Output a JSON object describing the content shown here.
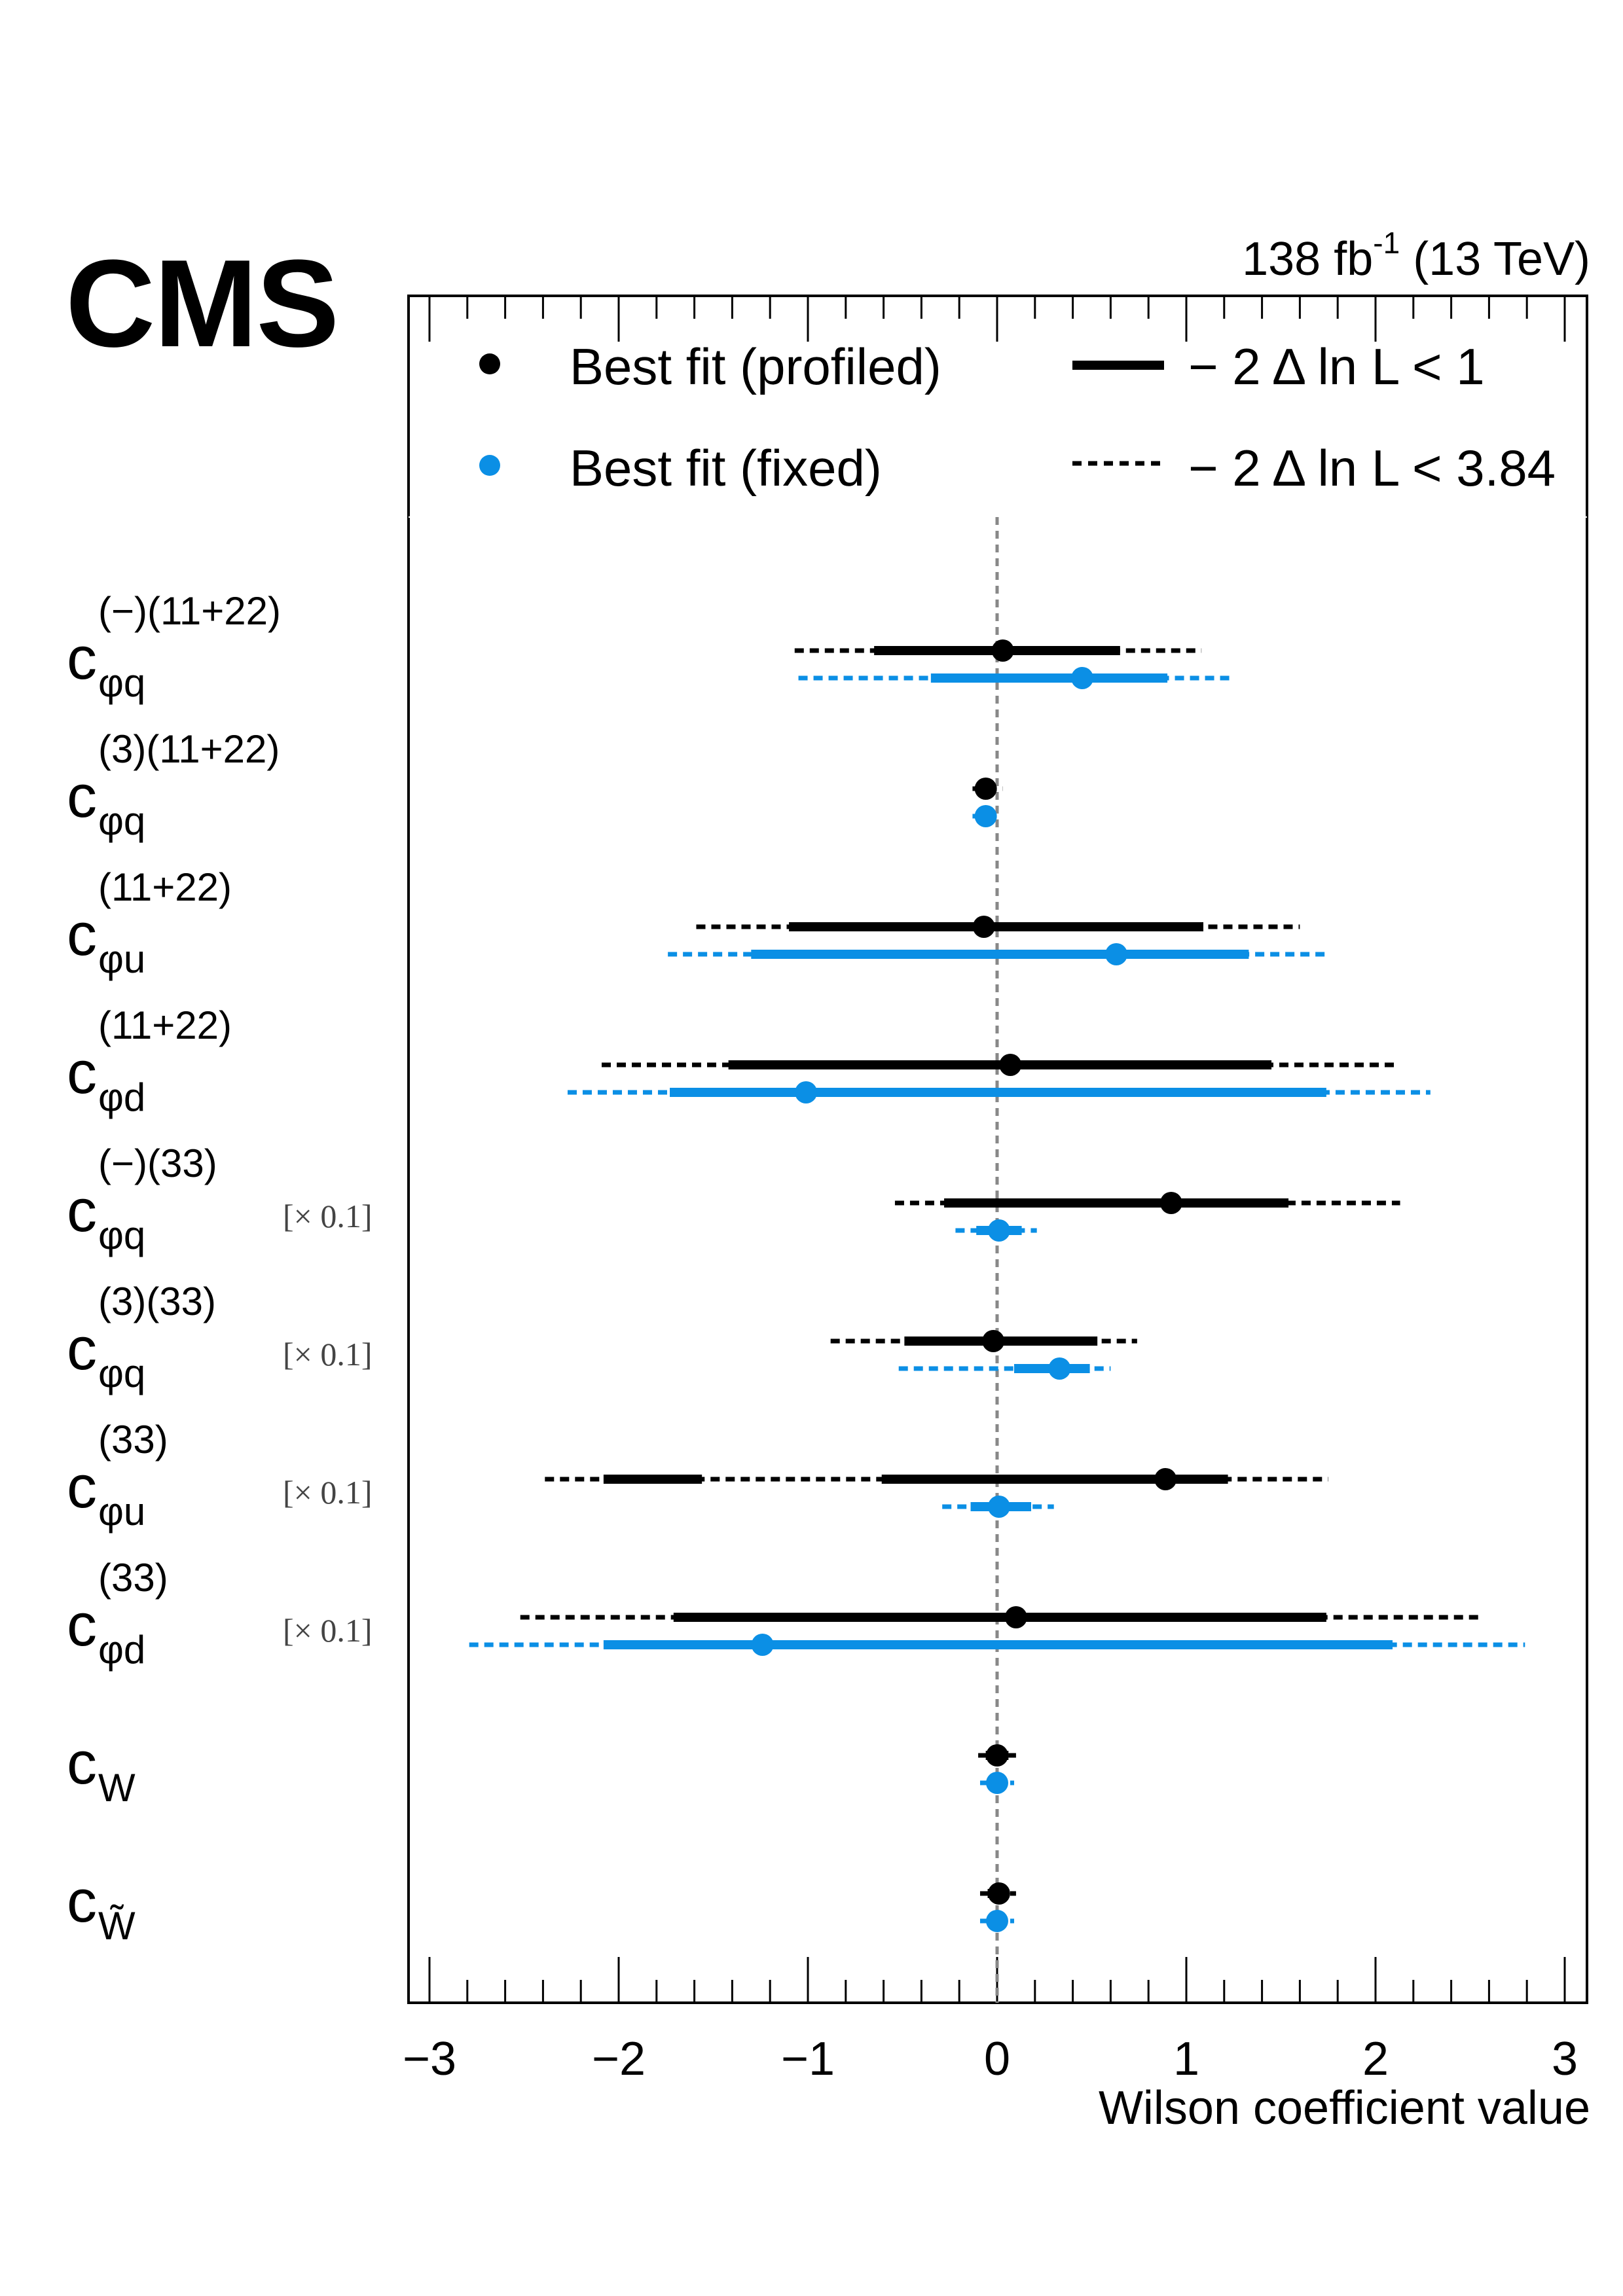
{
  "header": {
    "experiment": "CMS",
    "lumi": "138 fb",
    "lumi_exp": "-1",
    "energy": " (13 TeV)"
  },
  "legend": {
    "profiled": "Best fit (profiled)",
    "fixed": "Best fit (fixed)",
    "one_sigma": "− 2 Δ ln L < 1",
    "ninetyfive": "− 2 Δ ln L < 3.84"
  },
  "colors": {
    "profiled": "#000000",
    "fixed": "#0b8fe5",
    "zero_line": "#888888"
  },
  "chart_data": {
    "type": "scatter",
    "xlabel": "Wilson coefficient value",
    "xlim": [
      -3.1,
      3.15
    ],
    "xticks": [
      "−3",
      "−2",
      "−1",
      "0",
      "1",
      "2",
      "3"
    ],
    "xtick_values": [
      -3,
      -2,
      -1,
      0,
      1,
      2,
      3
    ],
    "grid": false,
    "legend_position": "top",
    "rows": [
      {
        "label_main": "c",
        "label_sub": "φq",
        "label_sup": "(−)(11+22)",
        "scale_note": "",
        "profiled": {
          "best": 0.03,
          "cl68": [
            [
              -0.65,
              0.65
            ]
          ],
          "cl95": [
            [
              -1.07,
              1.08
            ]
          ]
        },
        "fixed": {
          "best": 0.45,
          "cl68": [
            [
              -0.35,
              0.9
            ]
          ],
          "cl95": [
            [
              -1.05,
              1.24
            ]
          ]
        }
      },
      {
        "label_main": "c",
        "label_sub": "φq",
        "label_sup": "(3)(11+22)",
        "scale_note": "",
        "profiled": {
          "best": -0.06,
          "cl68": [
            [
              -0.1,
              -0.02
            ]
          ],
          "cl95": [
            [
              -0.13,
              0.03
            ]
          ]
        },
        "fixed": {
          "best": -0.06,
          "cl68": [
            [
              -0.08,
              -0.03
            ]
          ],
          "cl95": [
            [
              -0.13,
              0.01
            ]
          ]
        }
      },
      {
        "label_main": "c",
        "label_sub": "φu",
        "label_sup": "(11+22)",
        "scale_note": "",
        "profiled": {
          "best": -0.07,
          "cl68": [
            [
              -1.1,
              1.09
            ]
          ],
          "cl95": [
            [
              -1.59,
              1.6
            ]
          ]
        },
        "fixed": {
          "best": 0.63,
          "cl68": [
            [
              -1.3,
              1.33
            ]
          ],
          "cl95": [
            [
              -1.74,
              1.76
            ]
          ]
        }
      },
      {
        "label_main": "c",
        "label_sub": "φd",
        "label_sup": "(11+22)",
        "scale_note": "",
        "profiled": {
          "best": 0.07,
          "cl68": [
            [
              -1.42,
              1.45
            ]
          ],
          "cl95": [
            [
              -2.09,
              2.12
            ]
          ]
        },
        "fixed": {
          "best": -1.01,
          "cl68": [
            [
              -1.73,
              1.74
            ]
          ],
          "cl95": [
            [
              -2.27,
              2.29
            ]
          ]
        }
      },
      {
        "label_main": "c",
        "label_sub": "φq",
        "label_sup": "(−)(33)",
        "scale_note": "[× 0.1]",
        "profiled": {
          "best": 0.92,
          "cl68": [
            [
              -0.28,
              1.54
            ]
          ],
          "cl95": [
            [
              -0.54,
              2.13
            ]
          ]
        },
        "fixed": {
          "best": 0.01,
          "cl68": [
            [
              -0.11,
              0.13
            ]
          ],
          "cl95": [
            [
              -0.22,
              0.21
            ]
          ]
        }
      },
      {
        "label_main": "c",
        "label_sub": "φq",
        "label_sup": "(3)(33)",
        "scale_note": "[× 0.1]",
        "profiled": {
          "best": -0.02,
          "cl68": [
            [
              -0.49,
              0.53
            ]
          ],
          "cl95": [
            [
              -0.88,
              0.74
            ]
          ]
        },
        "fixed": {
          "best": 0.33,
          "cl68": [
            [
              0.09,
              0.49
            ]
          ],
          "cl95": [
            [
              -0.52,
              0.6
            ]
          ]
        }
      },
      {
        "label_main": "c",
        "label_sub": "φu",
        "label_sup": "(33)",
        "scale_note": "[× 0.1]",
        "profiled": {
          "best": 0.89,
          "cl68": [
            [
              -2.08,
              -1.56
            ],
            [
              -0.61,
              1.22
            ]
          ],
          "cl95": [
            [
              -2.39,
              1.75
            ]
          ]
        },
        "fixed": {
          "best": 0.01,
          "cl68": [
            [
              -0.14,
              0.18
            ]
          ],
          "cl95": [
            [
              -0.29,
              0.3
            ]
          ]
        }
      },
      {
        "label_main": "c",
        "label_sub": "φd",
        "label_sup": "(33)",
        "scale_note": "[× 0.1]",
        "profiled": {
          "best": 0.1,
          "cl68": [
            [
              -1.71,
              1.74
            ]
          ],
          "cl95": [
            [
              -2.52,
              2.55
            ]
          ]
        },
        "fixed": {
          "best": -1.24,
          "cl68": [
            [
              -2.08,
              2.09
            ]
          ],
          "cl95": [
            [
              -2.79,
              2.79
            ]
          ]
        }
      },
      {
        "label_main": "c",
        "label_sub": "W",
        "label_sup": "",
        "scale_note": "",
        "profiled": {
          "best": 0.0,
          "cl68": [
            [
              -0.06,
              0.06
            ]
          ],
          "cl95": [
            [
              -0.1,
              0.1
            ]
          ]
        },
        "fixed": {
          "best": 0.0,
          "cl68": [
            [
              -0.05,
              0.05
            ]
          ],
          "cl95": [
            [
              -0.09,
              0.09
            ]
          ]
        }
      },
      {
        "label_main": "c",
        "label_sub": "W̃",
        "label_sup": "",
        "scale_note": "",
        "profiled": {
          "best": 0.01,
          "cl68": [
            [
              -0.05,
              0.06
            ]
          ],
          "cl95": [
            [
              -0.09,
              0.1
            ]
          ]
        },
        "fixed": {
          "best": 0.0,
          "cl68": [
            [
              -0.05,
              0.05
            ]
          ],
          "cl95": [
            [
              -0.09,
              0.09
            ]
          ]
        }
      }
    ]
  }
}
